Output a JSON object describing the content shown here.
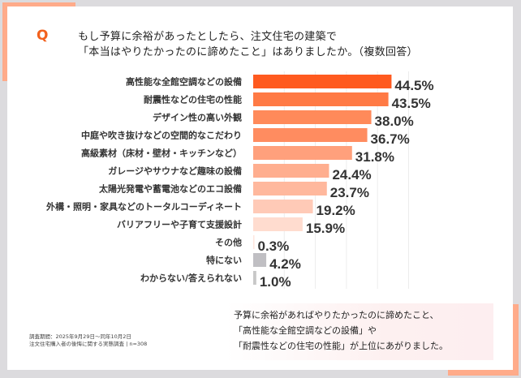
{
  "question": {
    "mark": "Q",
    "line1": "もし予算に余裕があったとしたら、注文住宅の建築で",
    "line2": "「本当はやりたかったのに諦めたこと」はありましたか。（複数回答）"
  },
  "chart_data": {
    "type": "bar",
    "orientation": "horizontal",
    "xlim": [
      0,
      50
    ],
    "grid": true,
    "unit": "%",
    "categories": [
      "高性能な全館空調などの設備",
      "耐震性などの住宅の性能",
      "デザイン性の高い外観",
      "中庭や吹き抜けなどの空間的なこだわり",
      "高級素材（床材・壁材・キッチンなど）",
      "ガレージやサウナなど趣味の設備",
      "太陽光発電や蓄電池などのエコ設備",
      "外構・照明・家具などのトータルコーディネート",
      "バリアフリーや子育て支援設計",
      "その他",
      "特にない",
      "わからない/答えられない"
    ],
    "values": [
      44.5,
      43.5,
      38.0,
      36.7,
      31.8,
      24.4,
      23.7,
      19.2,
      15.9,
      0.3,
      4.2,
      1.0
    ],
    "labels": [
      "44.5%",
      "43.5%",
      "38.0%",
      "36.7%",
      "31.8%",
      "24.4%",
      "23.7%",
      "19.2%",
      "15.9%",
      "0.3%",
      "4.2%",
      "1.0%"
    ],
    "colors": [
      "#ff5a1f",
      "#ff7a45",
      "#ff8a5a",
      "#ff8c60",
      "#ffa07c",
      "#ffae8f",
      "#ffb89d",
      "#ffcab7",
      "#ffdccf",
      "#ffe6de",
      "#c0bfc3",
      "#c8c8c8"
    ]
  },
  "note": {
    "line1": "調査期間：2025年9月29日～同年10月2日",
    "line2": "注文住宅購入者の後悔に関する実態調査 | n=308"
  },
  "callout": {
    "line1": "予算に余裕があればやりたかったのに諦めたこと、",
    "line2": "「高性能な全館空調などの設備」や",
    "line3": "「耐震性などの住宅の性能」が上位にあがりました。"
  }
}
